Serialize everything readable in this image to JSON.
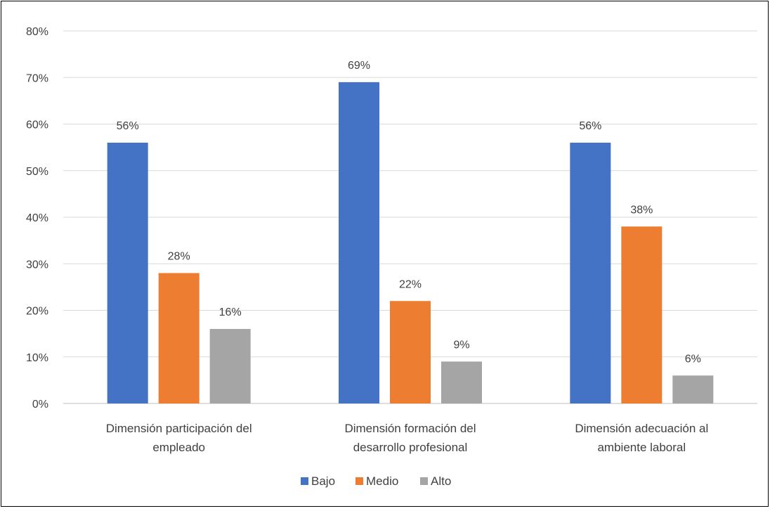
{
  "chart_data": {
    "type": "bar",
    "title": "",
    "xlabel": "",
    "ylabel": "",
    "ylim": [
      0,
      80
    ],
    "y_ticks": [
      "0%",
      "10%",
      "20%",
      "30%",
      "40%",
      "50%",
      "60%",
      "70%",
      "80%"
    ],
    "grid": true,
    "legend_position": "bottom",
    "categories": [
      [
        "Dimensión participación del",
        "empleado"
      ],
      [
        "Dimensión formación del",
        "desarrollo profesional"
      ],
      [
        "Dimensión adecuación al",
        "ambiente laboral"
      ]
    ],
    "series": [
      {
        "name": "Bajo",
        "color": "#4472C4",
        "values": [
          56,
          69,
          56
        ],
        "labels": [
          "56%",
          "69%",
          "56%"
        ]
      },
      {
        "name": "Medio",
        "color": "#ED7D31",
        "values": [
          28,
          22,
          38
        ],
        "labels": [
          "28%",
          "22%",
          "38%"
        ]
      },
      {
        "name": "Alto",
        "color": "#A5A5A5",
        "values": [
          16,
          9,
          6
        ],
        "labels": [
          "16%",
          "9%",
          "6%"
        ]
      }
    ]
  }
}
